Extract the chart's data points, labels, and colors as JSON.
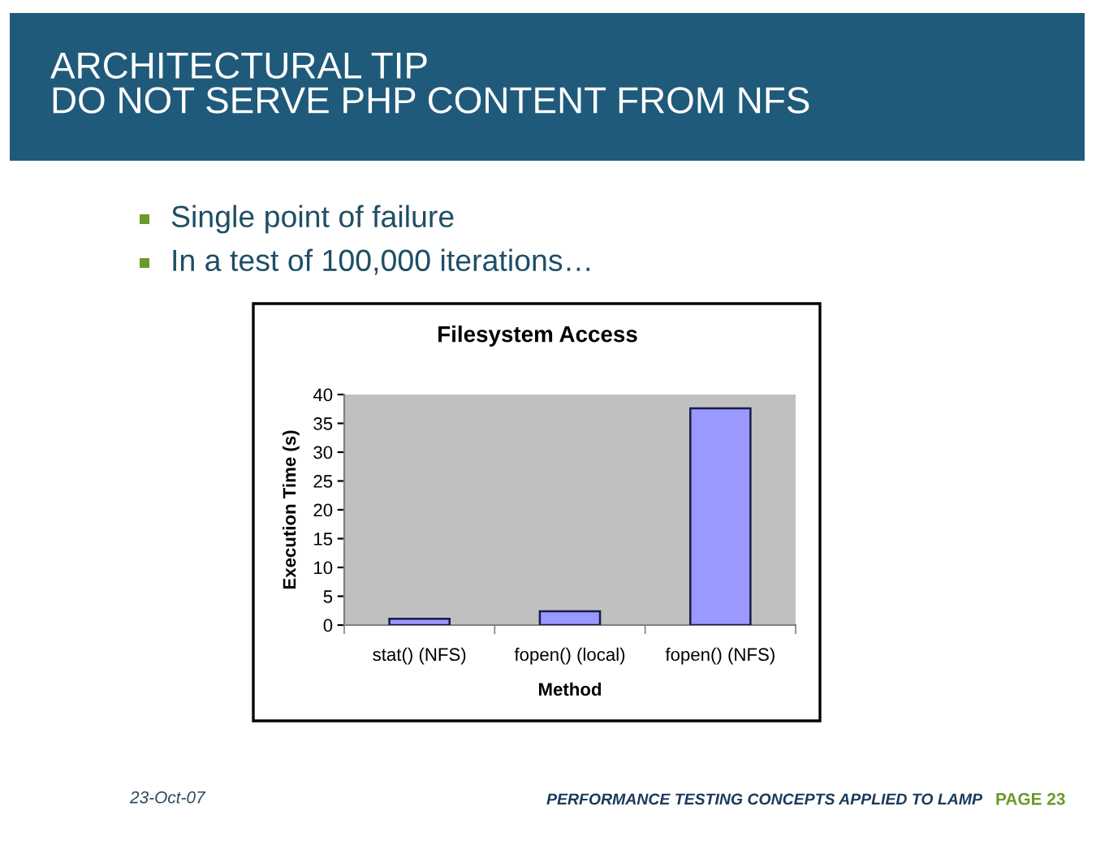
{
  "chart_data": {
    "type": "bar",
    "title": "Filesystem Access",
    "xlabel": "Method",
    "ylabel": "Execution Time (s)",
    "categories": [
      "stat() (NFS)",
      "fopen() (local)",
      "fopen() (NFS)"
    ],
    "values": [
      1.1,
      2.4,
      37.6
    ],
    "color": "#9999ff",
    "ylim": [
      0,
      40
    ],
    "yticks": [
      0,
      5,
      10,
      15,
      20,
      25,
      30,
      35,
      40
    ],
    "annotations": [
      "ARCHITECTURAL TIP\nDO NOT SERVE PHP CONTENT FROM NFS",
      "Single point of failure",
      "In a test of 100,000 iterations…",
      "23-Oct-07",
      "PERFORMANCE TESTING CONCEPTS APPLIED TO LAMP",
      "PAGE 23"
    ]
  }
}
